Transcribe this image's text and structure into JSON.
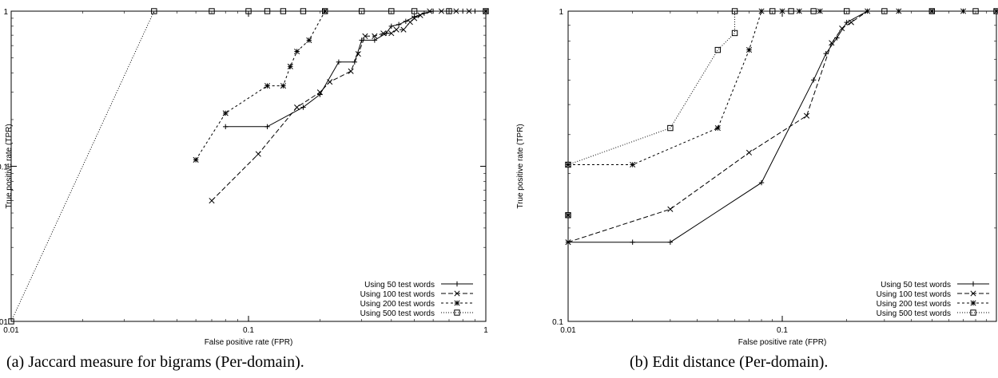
{
  "captions": {
    "a": "(a) Jaccard measure for bigrams (Per-domain).",
    "b": "(b) Edit distance (Per-domain)."
  },
  "chart_data": [
    {
      "type": "line",
      "title": "",
      "xlabel": "False positive rate (FPR)",
      "ylabel": "True positive rate (TPR)",
      "xscale": "log",
      "yscale": "log",
      "xlim": [
        0.01,
        1
      ],
      "ylim": [
        0.01,
        1
      ],
      "xticks": [
        0.01,
        0.1,
        1
      ],
      "xtick_labels": [
        "0.01",
        "0.1",
        "1"
      ],
      "yticks": [
        0.01,
        0.1,
        1
      ],
      "ytick_labels": [
        "0.01",
        "0.1",
        "1"
      ],
      "grid": false,
      "legend_position": "bottom-right",
      "series": [
        {
          "name": "Using 50 test words",
          "marker": "plus",
          "dash": "",
          "x": [
            0.08,
            0.12,
            0.17,
            0.2,
            0.24,
            0.28,
            0.3,
            0.34,
            0.38,
            0.4,
            0.43,
            0.46,
            0.5,
            0.55,
            0.6,
            0.7,
            0.8,
            0.9,
            1.0
          ],
          "y": [
            0.18,
            0.18,
            0.24,
            0.29,
            0.47,
            0.47,
            0.65,
            0.65,
            0.72,
            0.8,
            0.82,
            0.86,
            0.92,
            0.97,
            1,
            1,
            1,
            1,
            1
          ]
        },
        {
          "name": "Using 100 test words",
          "marker": "x",
          "dash": "6,3",
          "x": [
            0.07,
            0.11,
            0.16,
            0.2,
            0.22,
            0.27,
            0.29,
            0.31,
            0.34,
            0.37,
            0.4,
            0.42,
            0.45,
            0.48,
            0.5,
            0.53,
            0.58,
            0.65,
            0.75,
            0.85,
            1.0
          ],
          "y": [
            0.06,
            0.12,
            0.24,
            0.3,
            0.35,
            0.41,
            0.53,
            0.69,
            0.69,
            0.72,
            0.72,
            0.76,
            0.76,
            0.85,
            0.9,
            0.94,
            1,
            1,
            1,
            1,
            1
          ]
        },
        {
          "name": "Using 200 test words",
          "marker": "star",
          "dash": "3,3",
          "x": [
            0.06,
            0.08,
            0.12,
            0.14,
            0.15,
            0.16,
            0.18,
            0.21
          ],
          "y": [
            0.11,
            0.22,
            0.33,
            0.33,
            0.44,
            0.55,
            0.65,
            1
          ]
        },
        {
          "name": "Using 500 test words",
          "marker": "square",
          "dash": "1,2",
          "x": [
            0.01,
            0.04,
            0.07,
            0.1,
            0.12,
            0.14,
            0.17,
            0.21,
            0.3,
            0.4,
            0.5,
            0.7,
            1.0
          ],
          "y": [
            0.01,
            1,
            1,
            1,
            1,
            1,
            1,
            1,
            1,
            1,
            1,
            1,
            1
          ]
        }
      ]
    },
    {
      "type": "line",
      "title": "",
      "xlabel": "False positive rate (FPR)",
      "ylabel": "True positive rate (TPR)",
      "xscale": "log",
      "yscale": "log",
      "xlim": [
        0.01,
        1
      ],
      "ylim": [
        0.1,
        1
      ],
      "xticks": [
        0.01,
        0.1
      ],
      "xtick_labels": [
        "0.01",
        "0.1"
      ],
      "yticks": [
        0.1,
        1
      ],
      "ytick_labels": [
        "0.1",
        "1"
      ],
      "grid": false,
      "legend_position": "bottom-right",
      "series": [
        {
          "name": "Using 50 test words",
          "marker": "plus",
          "dash": "",
          "x": [
            0.01,
            0.02,
            0.03,
            0.08,
            0.14,
            0.16,
            0.18,
            0.2,
            0.25,
            0.35,
            0.5,
            0.7,
            1.0
          ],
          "y": [
            0.18,
            0.18,
            0.18,
            0.28,
            0.6,
            0.73,
            0.82,
            0.92,
            1,
            1,
            1,
            1,
            1
          ]
        },
        {
          "name": "Using 100 test words",
          "marker": "x",
          "dash": "6,3",
          "x": [
            0.01,
            0.03,
            0.07,
            0.13,
            0.17,
            0.19,
            0.21,
            0.25,
            0.35,
            0.5,
            0.7,
            1.0
          ],
          "y": [
            0.18,
            0.23,
            0.35,
            0.46,
            0.79,
            0.88,
            0.92,
            1,
            1,
            1,
            1,
            1
          ]
        },
        {
          "name": "Using 200 test words",
          "marker": "star",
          "dash": "3,3",
          "x": [
            0.01,
            0.02,
            0.05,
            0.07,
            0.08,
            0.1,
            0.12,
            0.15
          ],
          "y": [
            0.32,
            0.32,
            0.42,
            0.75,
            1,
            1,
            1,
            1
          ]
        },
        {
          "name": "Using 500 test words",
          "marker": "square",
          "dash": "1,2",
          "x": [
            0.01,
            0.03,
            0.05,
            0.06,
            0.06,
            0.09,
            0.11,
            0.14,
            0.2,
            0.3,
            0.5,
            0.8,
            1.0
          ],
          "y": [
            0.32,
            0.42,
            0.75,
            0.85,
            1,
            1,
            1,
            1,
            1,
            1,
            1,
            1,
            1
          ]
        }
      ],
      "extra_points": [
        {
          "series": "Using 200 test words",
          "x": 0.01,
          "y": 0.22,
          "marker": "star"
        },
        {
          "series": "Using 500 test words",
          "x": 0.01,
          "y": 0.22,
          "marker": "square"
        }
      ]
    }
  ]
}
